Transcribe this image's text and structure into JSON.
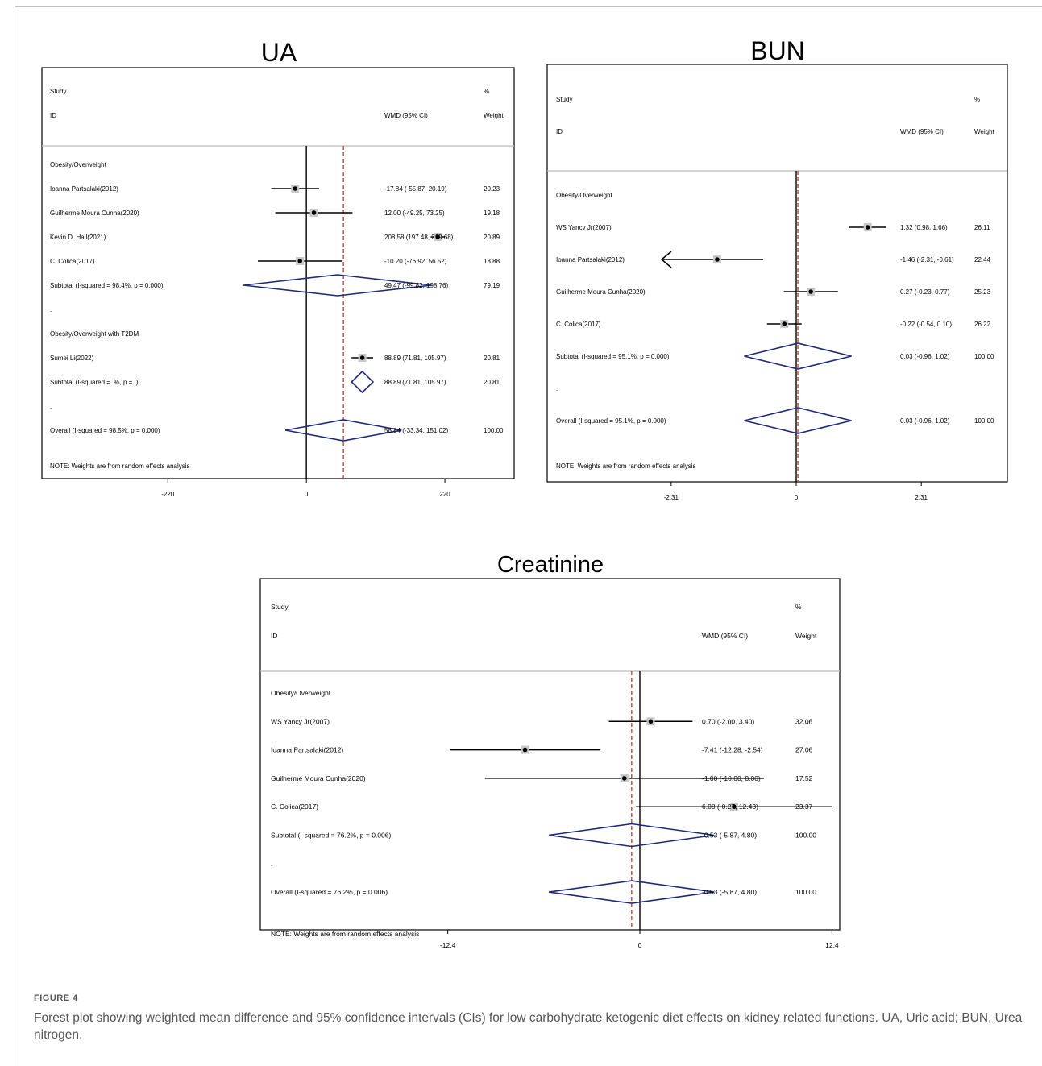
{
  "figure": {
    "label": "FIGURE 4",
    "caption": "Forest plot showing weighted mean difference and 95% confidence intervals (CIs) for low carbohydrate ketogenic diet effects on kidney related functions. UA, Uric acid; BUN, Urea nitrogen."
  },
  "chart_data": [
    {
      "type": "forest",
      "title": "UA",
      "header": {
        "study": "Study",
        "id": "ID",
        "effect": "WMD (95% CI)",
        "pct": "%",
        "weight": "Weight"
      },
      "x_ticks": [
        -220,
        0,
        220
      ],
      "x_tick_labels": [
        "-220",
        "0",
        "220"
      ],
      "xlim": [
        -420,
        330
      ],
      "overall_effect": 58.84,
      "note": "NOTE: Weights are from random effects analysis",
      "rows": [
        {
          "kind": "group",
          "label": "Obesity/Overweight"
        },
        {
          "kind": "study",
          "label": "Ioanna  Partsalaki(2012)",
          "est": -17.84,
          "lo": -55.87,
          "hi": 20.19,
          "ci_text": "-17.84 (-55.87, 20.19)",
          "weight": "20.23"
        },
        {
          "kind": "study",
          "label": "Guilherme Moura Cunha(2020)",
          "est": 12.0,
          "lo": -49.25,
          "hi": 73.25,
          "ci_text": "12.00 (-49.25, 73.25)",
          "weight": "19.18"
        },
        {
          "kind": "study",
          "label": "Kevin D. Hall(2021)",
          "est": 208.58,
          "lo": 197.48,
          "hi": 219.68,
          "ci_text": "208.58 (197.48, 219.68)",
          "weight": "20.89"
        },
        {
          "kind": "study",
          "label": "C. Colica(2017)",
          "est": -10.2,
          "lo": -76.92,
          "hi": 56.52,
          "ci_text": "-10.20 (-76.92, 56.52)",
          "weight": "18.88"
        },
        {
          "kind": "subtotal",
          "label": "Subtotal  (I-squared = 98.4%, p = 0.000)",
          "est": 49.47,
          "lo": -99.82,
          "hi": 198.76,
          "ci_text": "49.47 (-99.82, 198.76)",
          "weight": "79.19"
        },
        {
          "kind": "dot",
          "label": "."
        },
        {
          "kind": "group",
          "label": "Obesity/Overweight with T2DM"
        },
        {
          "kind": "study",
          "label": "Sumei Li(2022)",
          "est": 88.89,
          "lo": 71.81,
          "hi": 105.97,
          "ci_text": "88.89 (71.81, 105.97)",
          "weight": "20.81"
        },
        {
          "kind": "subtotal",
          "label": "Subtotal  (I-squared = .%, p = .)",
          "est": 88.89,
          "lo": 71.81,
          "hi": 105.97,
          "ci_text": "88.89 (71.81, 105.97)",
          "weight": "20.81"
        },
        {
          "kind": "dot",
          "label": "."
        },
        {
          "kind": "subtotal",
          "label": "Overall  (I-squared = 98.5%, p = 0.000)",
          "est": 58.84,
          "lo": -33.34,
          "hi": 151.02,
          "ci_text": "58.84 (-33.34, 151.02)",
          "weight": "100.00"
        }
      ]
    },
    {
      "type": "forest",
      "title": "BUN",
      "header": {
        "study": "Study",
        "id": "ID",
        "effect": "WMD (95% CI)",
        "pct": "%",
        "weight": "Weight"
      },
      "x_ticks": [
        -2.31,
        0,
        2.31
      ],
      "x_tick_labels": [
        "-2.31",
        "0",
        "2.31"
      ],
      "xlim": [
        -4.6,
        3.9
      ],
      "overall_effect": 0.03,
      "note": "NOTE: Weights are from random effects analysis",
      "rows": [
        {
          "kind": "group",
          "label": "Obesity/Overweight"
        },
        {
          "kind": "study",
          "label": "WS Yancy Jr(2007)",
          "est": 1.32,
          "lo": 0.98,
          "hi": 1.66,
          "ci_text": "1.32 (0.98, 1.66)",
          "weight": "26.11"
        },
        {
          "kind": "study",
          "label": "Ioanna  Partsalaki(2012)",
          "est": -1.46,
          "lo": -2.31,
          "hi": -0.61,
          "ci_text": "-1.46 (-2.31, -0.61)",
          "weight": "22.44",
          "arrow_left": true
        },
        {
          "kind": "study",
          "label": "Guilherme Moura Cunha(2020)",
          "est": 0.27,
          "lo": -0.23,
          "hi": 0.77,
          "ci_text": "0.27 (-0.23, 0.77)",
          "weight": "25.23"
        },
        {
          "kind": "study",
          "label": "C. Colica(2017)",
          "est": -0.22,
          "lo": -0.54,
          "hi": 0.1,
          "ci_text": "-0.22 (-0.54, 0.10)",
          "weight": "26.22"
        },
        {
          "kind": "subtotal",
          "label": "Subtotal  (I-squared = 95.1%, p = 0.000)",
          "est": 0.03,
          "lo": -0.96,
          "hi": 1.02,
          "ci_text": "0.03 (-0.96, 1.02)",
          "weight": "100.00"
        },
        {
          "kind": "dot",
          "label": "."
        },
        {
          "kind": "subtotal",
          "label": "Overall  (I-squared = 95.1%, p = 0.000)",
          "est": 0.03,
          "lo": -0.96,
          "hi": 1.02,
          "ci_text": "0.03 (-0.96, 1.02)",
          "weight": "100.00"
        }
      ]
    },
    {
      "type": "forest",
      "title": "Creatinine",
      "header": {
        "study": "Study",
        "id": "ID",
        "effect": "WMD (95% CI)",
        "pct": "%",
        "weight": "Weight"
      },
      "x_ticks": [
        -12.4,
        0,
        12.4
      ],
      "x_tick_labels": [
        "-12.4",
        "0",
        "12.4"
      ],
      "xlim": [
        -24.5,
        12.9
      ],
      "overall_effect": -0.53,
      "note": "NOTE: Weights are from random effects analysis",
      "rows": [
        {
          "kind": "group",
          "label": "Obesity/Overweight"
        },
        {
          "kind": "study",
          "label": "WS Yancy Jr(2007)",
          "est": 0.7,
          "lo": -2.0,
          "hi": 3.4,
          "ci_text": "0.70 (-2.00, 3.40)",
          "weight": "32.06"
        },
        {
          "kind": "study",
          "label": "Ioanna  Partsalaki(2012)",
          "est": -7.41,
          "lo": -12.28,
          "hi": -2.54,
          "ci_text": "-7.41 (-12.28, -2.54)",
          "weight": "27.06"
        },
        {
          "kind": "study",
          "label": "Guilherme Moura Cunha(2020)",
          "est": -1.0,
          "lo": -10.0,
          "hi": 8.0,
          "ci_text": "-1.00 (-10.00, 8.00)",
          "weight": "17.52"
        },
        {
          "kind": "study",
          "label": "C. Colica(2017)",
          "est": 6.08,
          "lo": -0.27,
          "hi": 12.43,
          "ci_text": "6.08 (-0.27, 12.43)",
          "weight": "23.37"
        },
        {
          "kind": "subtotal",
          "label": "Subtotal  (I-squared = 76.2%, p = 0.006)",
          "est": -0.53,
          "lo": -5.87,
          "hi": 4.8,
          "ci_text": "-0.53 (-5.87, 4.80)",
          "weight": "100.00"
        },
        {
          "kind": "dot",
          "label": "."
        },
        {
          "kind": "subtotal",
          "label": "Overall  (I-squared = 76.2%, p = 0.006)",
          "est": -0.53,
          "lo": -5.87,
          "hi": 4.8,
          "ci_text": "-0.53 (-5.87, 4.80)",
          "weight": "100.00"
        }
      ]
    }
  ]
}
